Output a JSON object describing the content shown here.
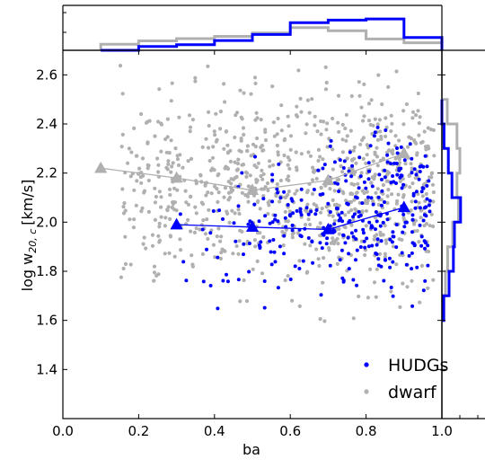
{
  "chart_data": [
    {
      "type": "scatter",
      "role": "main",
      "xlabel": "ba",
      "ylabel_main": "log w",
      "ylabel_sub": "20, c",
      "ylabel_unit": "[km/s]",
      "xlim": [
        0.0,
        1.0
      ],
      "ylim": [
        1.2,
        2.7
      ],
      "xticks": [
        "0.0",
        "0.2",
        "0.4",
        "0.6",
        "0.8",
        "1.0"
      ],
      "yticks": [
        "1.4",
        "1.6",
        "1.8",
        "2.0",
        "2.2",
        "2.4",
        "2.6"
      ],
      "legend_position": "lower-right",
      "series": [
        {
          "name": "dwarf",
          "color": "#b0b0b0",
          "binned_means": {
            "x": [
              0.1,
              0.3,
              0.5,
              0.7,
              0.9
            ],
            "y": [
              2.22,
              2.18,
              2.13,
              2.17,
              2.28
            ]
          }
        },
        {
          "name": "HUDGs",
          "color": "#0000ff",
          "binned_means": {
            "x": [
              0.3,
              0.5,
              0.7,
              0.9
            ],
            "y": [
              1.99,
              1.98,
              1.97,
              2.06
            ]
          }
        }
      ]
    },
    {
      "type": "histogram",
      "role": "top-marginal",
      "variable": "ba",
      "bin_edges": [
        0.1,
        0.2,
        0.3,
        0.4,
        0.5,
        0.6,
        0.7,
        0.8,
        0.9,
        1.0
      ],
      "series": [
        {
          "name": "dwarf",
          "color": "#b0b0b0",
          "counts": [
            0.16,
            0.25,
            0.31,
            0.37,
            0.46,
            0.6,
            0.52,
            0.3,
            0.2
          ]
        },
        {
          "name": "HUDGs",
          "color": "#0000ff",
          "counts": [
            0.0,
            0.1,
            0.15,
            0.26,
            0.42,
            0.73,
            0.8,
            0.83,
            0.34
          ]
        }
      ]
    },
    {
      "type": "histogram",
      "role": "right-marginal",
      "variable": "log w20,c",
      "xticks": [
        "1.0"
      ],
      "bin_edges": [
        1.6,
        1.7,
        1.8,
        1.9,
        2.0,
        2.1,
        2.2,
        2.3,
        2.4,
        2.5
      ],
      "series": [
        {
          "name": "dwarf",
          "color": "#b0b0b0",
          "counts": [
            0.06,
            0.1,
            0.16,
            0.3,
            0.46,
            0.42,
            0.5,
            0.42,
            0.15
          ]
        },
        {
          "name": "HUDGs",
          "color": "#0000ff",
          "counts": [
            0.05,
            0.2,
            0.32,
            0.35,
            0.52,
            0.28,
            0.18,
            0.06,
            0.0
          ]
        }
      ]
    }
  ],
  "legend": [
    {
      "label": "HUDGs",
      "color": "#0000ff"
    },
    {
      "label": "dwarf",
      "color": "#b0b0b0"
    }
  ]
}
